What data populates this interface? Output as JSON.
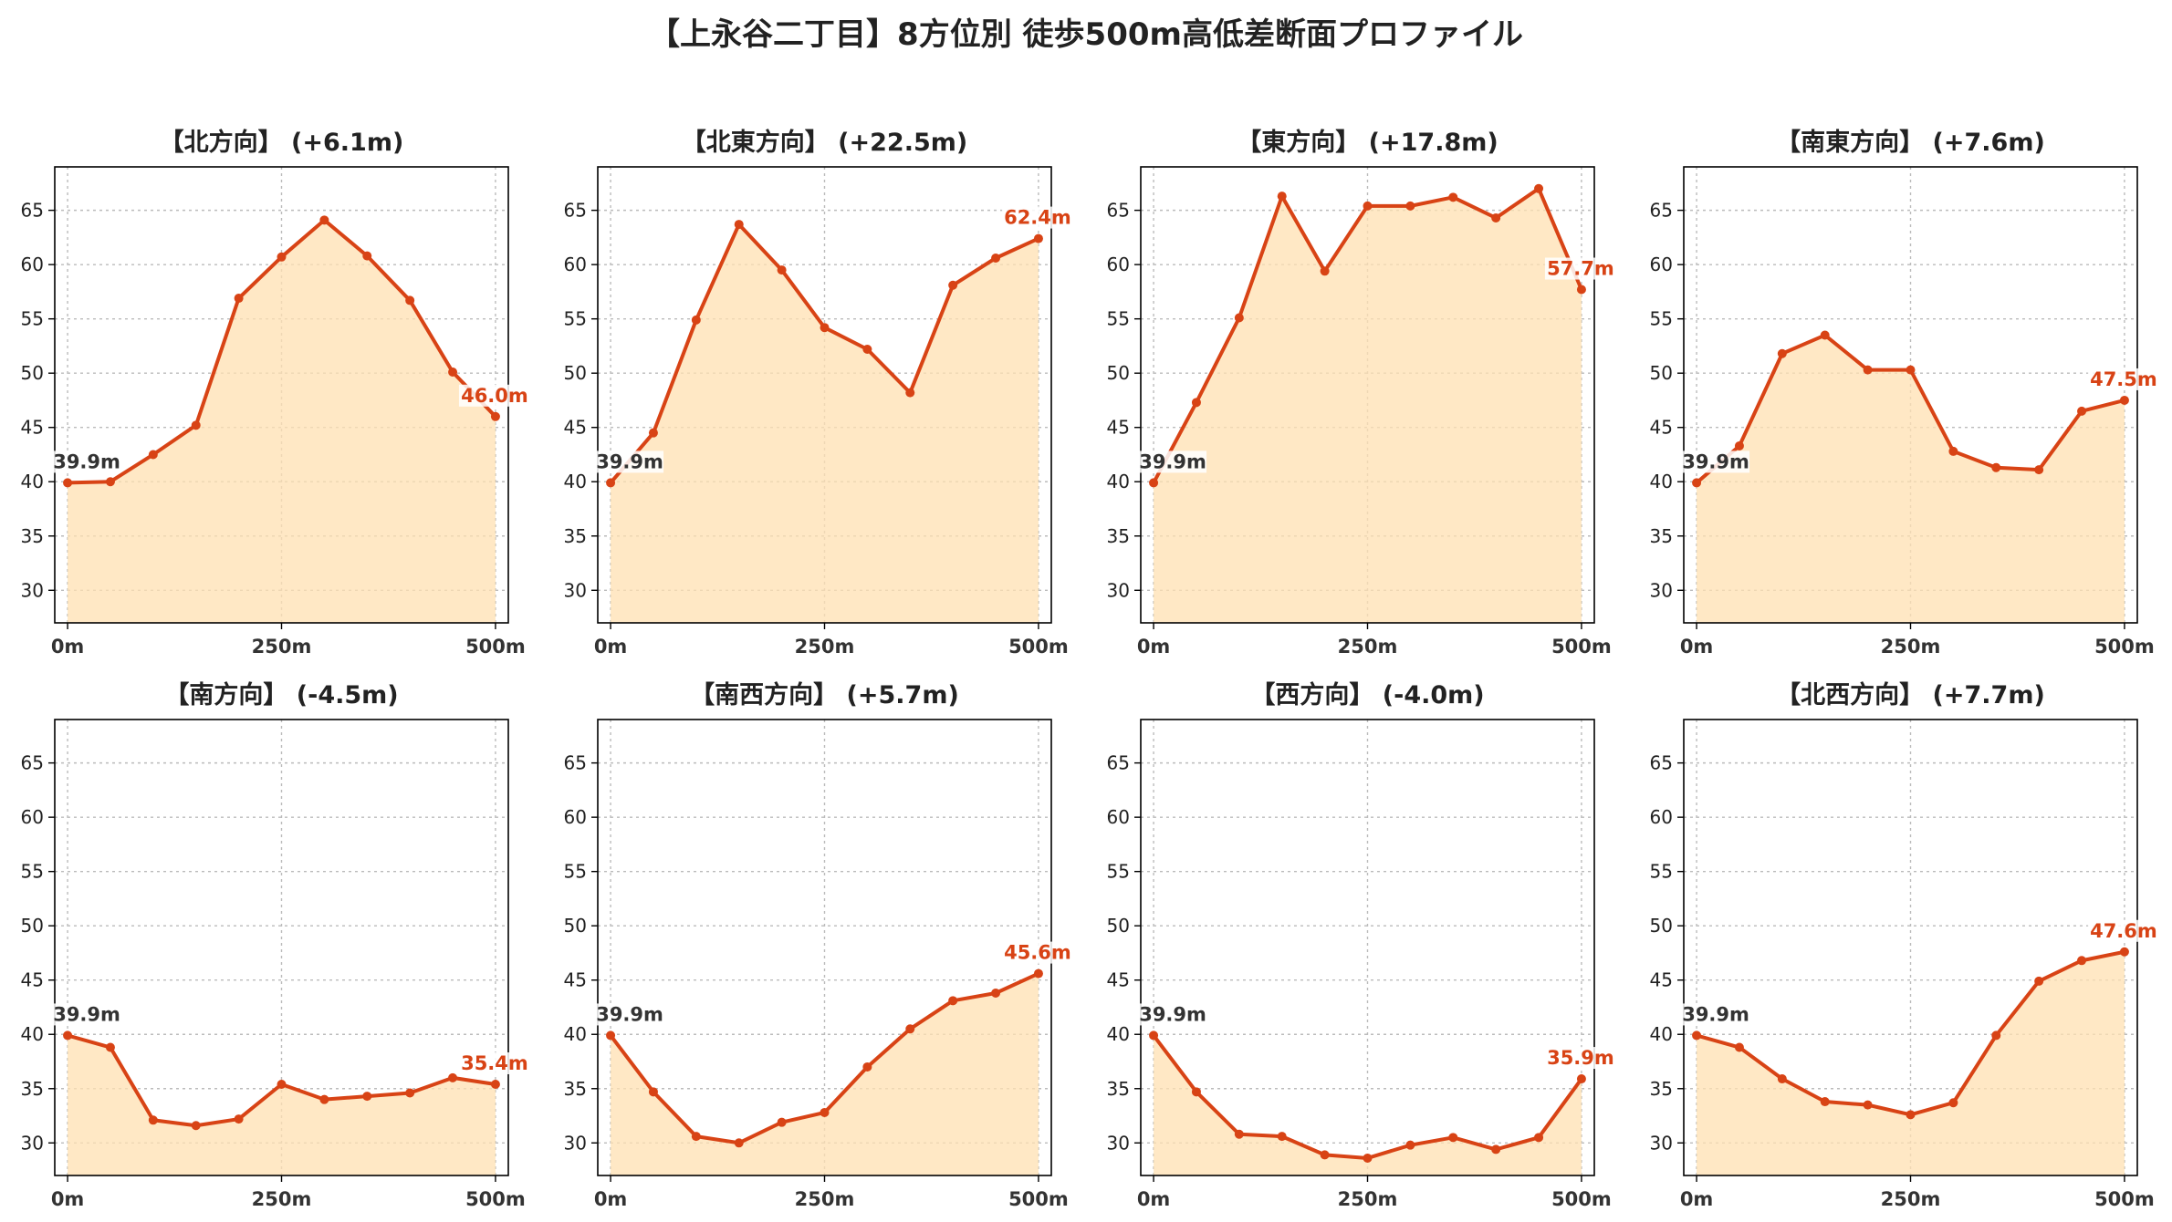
{
  "title": "【上永谷二丁目】8方位別 徒歩500m高低差断面プロファイル",
  "colors": {
    "line": "#d84315",
    "fill": "#ffe0b2",
    "start_label": "#333333",
    "end_label": "#d84315",
    "grid": "#bbbbbb",
    "axis": "#000000"
  },
  "chart_data": [
    {
      "type": "area",
      "title": "【北方向】 (+6.1m)",
      "x": [
        0,
        50,
        100,
        150,
        200,
        250,
        300,
        350,
        400,
        450,
        500
      ],
      "y": [
        39.9,
        40.0,
        42.5,
        45.2,
        56.9,
        60.7,
        64.1,
        60.8,
        56.7,
        50.1,
        46.0
      ],
      "start_label": "39.9m",
      "end_label": "46.0m",
      "xticks": [
        "0m",
        "250m",
        "500m"
      ],
      "yticks": [
        30,
        35,
        40,
        45,
        50,
        55,
        60,
        65
      ],
      "ylim": [
        27,
        69
      ],
      "xlim": [
        -15,
        515
      ],
      "grid": true
    },
    {
      "type": "area",
      "title": "【北東方向】 (+22.5m)",
      "x": [
        0,
        50,
        100,
        150,
        200,
        250,
        300,
        350,
        400,
        450,
        500
      ],
      "y": [
        39.9,
        44.5,
        54.9,
        63.7,
        59.5,
        54.2,
        52.2,
        48.2,
        58.1,
        60.6,
        62.4
      ],
      "start_label": "39.9m",
      "end_label": "62.4m",
      "xticks": [
        "0m",
        "250m",
        "500m"
      ],
      "yticks": [
        30,
        35,
        40,
        45,
        50,
        55,
        60,
        65
      ],
      "ylim": [
        27,
        69
      ],
      "xlim": [
        -15,
        515
      ],
      "grid": true
    },
    {
      "type": "area",
      "title": "【東方向】 (+17.8m)",
      "x": [
        0,
        50,
        100,
        150,
        200,
        250,
        300,
        350,
        400,
        450,
        500
      ],
      "y": [
        39.9,
        47.3,
        55.1,
        66.3,
        59.4,
        65.4,
        65.4,
        66.2,
        64.3,
        67.0,
        57.7
      ],
      "start_label": "39.9m",
      "end_label": "57.7m",
      "xticks": [
        "0m",
        "250m",
        "500m"
      ],
      "yticks": [
        30,
        35,
        40,
        45,
        50,
        55,
        60,
        65
      ],
      "ylim": [
        27,
        69
      ],
      "xlim": [
        -15,
        515
      ],
      "grid": true
    },
    {
      "type": "area",
      "title": "【南東方向】 (+7.6m)",
      "x": [
        0,
        50,
        100,
        150,
        200,
        250,
        300,
        350,
        400,
        450,
        500
      ],
      "y": [
        39.9,
        43.3,
        51.8,
        53.5,
        50.3,
        50.3,
        42.8,
        41.3,
        41.1,
        46.5,
        47.5
      ],
      "start_label": "39.9m",
      "end_label": "47.5m",
      "xticks": [
        "0m",
        "250m",
        "500m"
      ],
      "yticks": [
        30,
        35,
        40,
        45,
        50,
        55,
        60,
        65
      ],
      "ylim": [
        27,
        69
      ],
      "xlim": [
        -15,
        515
      ],
      "grid": true
    },
    {
      "type": "area",
      "title": "【南方向】 (-4.5m)",
      "x": [
        0,
        50,
        100,
        150,
        200,
        250,
        300,
        350,
        400,
        450,
        500
      ],
      "y": [
        39.9,
        38.8,
        32.1,
        31.6,
        32.2,
        35.4,
        34.0,
        34.3,
        34.6,
        36.0,
        35.4
      ],
      "start_label": "39.9m",
      "end_label": "35.4m",
      "xticks": [
        "0m",
        "250m",
        "500m"
      ],
      "yticks": [
        30,
        35,
        40,
        45,
        50,
        55,
        60,
        65
      ],
      "ylim": [
        27,
        69
      ],
      "xlim": [
        -15,
        515
      ],
      "grid": true
    },
    {
      "type": "area",
      "title": "【南西方向】 (+5.7m)",
      "x": [
        0,
        50,
        100,
        150,
        200,
        250,
        300,
        350,
        400,
        450,
        500
      ],
      "y": [
        39.9,
        34.7,
        30.6,
        30.0,
        31.9,
        32.8,
        37.0,
        40.5,
        43.1,
        43.8,
        45.6
      ],
      "start_label": "39.9m",
      "end_label": "45.6m",
      "xticks": [
        "0m",
        "250m",
        "500m"
      ],
      "yticks": [
        30,
        35,
        40,
        45,
        50,
        55,
        60,
        65
      ],
      "ylim": [
        27,
        69
      ],
      "xlim": [
        -15,
        515
      ],
      "grid": true
    },
    {
      "type": "area",
      "title": "【西方向】 (-4.0m)",
      "x": [
        0,
        50,
        100,
        150,
        200,
        250,
        300,
        350,
        400,
        450,
        500
      ],
      "y": [
        39.9,
        34.7,
        30.8,
        30.6,
        28.9,
        28.6,
        29.8,
        30.5,
        29.4,
        30.5,
        35.9
      ],
      "start_label": "39.9m",
      "end_label": "35.9m",
      "xticks": [
        "0m",
        "250m",
        "500m"
      ],
      "yticks": [
        30,
        35,
        40,
        45,
        50,
        55,
        60,
        65
      ],
      "ylim": [
        27,
        69
      ],
      "xlim": [
        -15,
        515
      ],
      "grid": true
    },
    {
      "type": "area",
      "title": "【北西方向】 (+7.7m)",
      "x": [
        0,
        50,
        100,
        150,
        200,
        250,
        300,
        350,
        400,
        450,
        500
      ],
      "y": [
        39.9,
        38.8,
        35.9,
        33.8,
        33.5,
        32.6,
        33.7,
        39.9,
        44.9,
        46.8,
        47.6
      ],
      "start_label": "39.9m",
      "end_label": "47.6m",
      "xticks": [
        "0m",
        "250m",
        "500m"
      ],
      "yticks": [
        30,
        35,
        40,
        45,
        50,
        55,
        60,
        65
      ],
      "ylim": [
        27,
        69
      ],
      "xlim": [
        -15,
        515
      ],
      "grid": true
    }
  ]
}
